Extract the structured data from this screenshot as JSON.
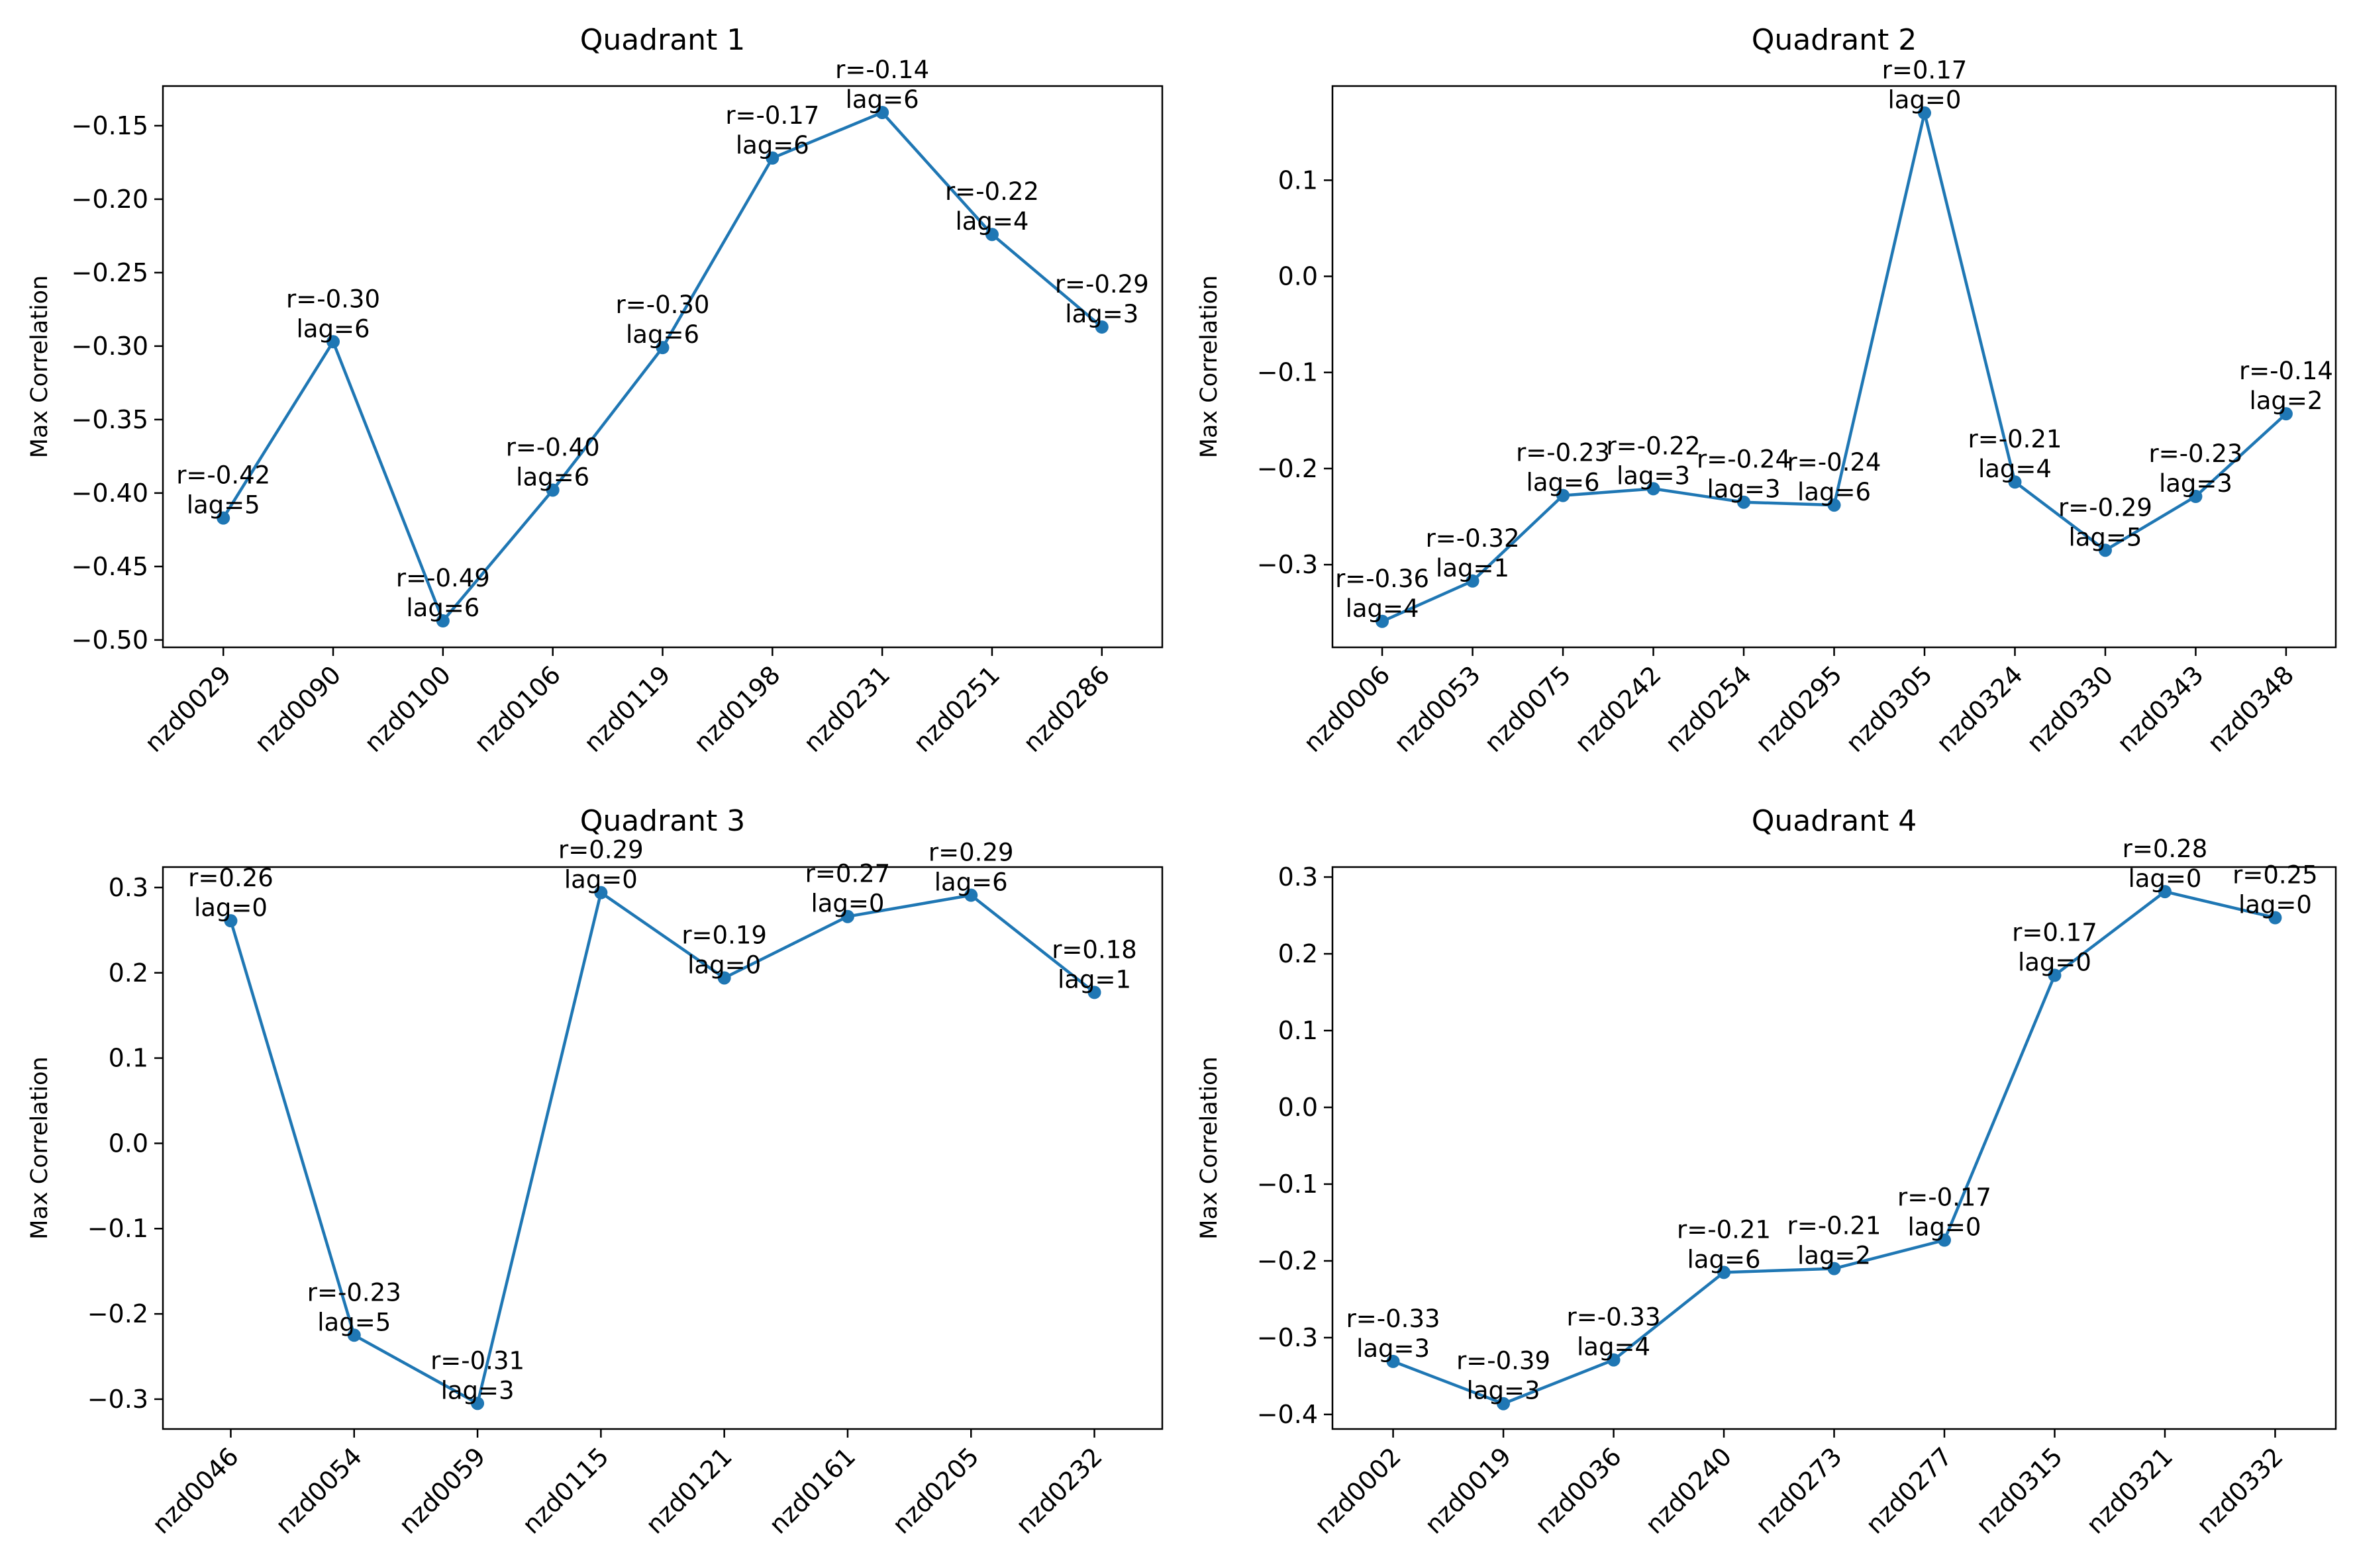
{
  "figure": {
    "background": "#ffffff",
    "line_color": "#1f77b4"
  },
  "chart_data": [
    {
      "type": "line",
      "title": "Quadrant 1",
      "ylabel": "Max Correlation",
      "xlabel": "",
      "categories": [
        "nzd0029",
        "nzd0090",
        "nzd0100",
        "nzd0106",
        "nzd0119",
        "nzd0198",
        "nzd0231",
        "nzd0251",
        "nzd0286"
      ],
      "values": [
        -0.417,
        -0.297,
        -0.487,
        -0.398,
        -0.301,
        -0.172,
        -0.141,
        -0.224,
        -0.287
      ],
      "annotations": [
        "r=-0.42\nlag=5",
        "r=-0.30\nlag=6",
        "r=-0.49\nlag=6",
        "r=-0.40\nlag=6",
        "r=-0.30\nlag=6",
        "r=-0.17\nlag=6",
        "r=-0.14\nlag=6",
        "r=-0.22\nlag=4",
        "r=-0.29\nlag=3"
      ],
      "ylim": [
        -0.505,
        -0.123
      ],
      "yticks": [
        -0.5,
        -0.45,
        -0.4,
        -0.35,
        -0.3,
        -0.25,
        -0.2,
        -0.15
      ],
      "ytick_labels": [
        "−0.50",
        "−0.45",
        "−0.40",
        "−0.35",
        "−0.30",
        "−0.25",
        "−0.20",
        "−0.15"
      ],
      "grid": false,
      "markers": true
    },
    {
      "type": "line",
      "title": "Quadrant 2",
      "ylabel": "Max Correlation",
      "xlabel": "",
      "categories": [
        "nzd0006",
        "nzd0053",
        "nzd0075",
        "nzd0242",
        "nzd0254",
        "nzd0295",
        "nzd0305",
        "nzd0324",
        "nzd0330",
        "nzd0343",
        "nzd0348"
      ],
      "values": [
        -0.359,
        -0.317,
        -0.228,
        -0.221,
        -0.235,
        -0.238,
        0.17,
        -0.214,
        -0.285,
        -0.229,
        -0.143
      ],
      "annotations": [
        "r=-0.36\nlag=4",
        "r=-0.32\nlag=1",
        "r=-0.23\nlag=6",
        "r=-0.22\nlag=3",
        "r=-0.24\nlag=3",
        "r=-0.24\nlag=6",
        "r=0.17\nlag=0",
        "r=-0.21\nlag=4",
        "r=-0.29\nlag=5",
        "r=-0.23\nlag=3",
        "r=-0.14\nlag=2"
      ],
      "ylim": [
        -0.386,
        0.198
      ],
      "yticks": [
        -0.3,
        -0.2,
        -0.1,
        0.0,
        0.1
      ],
      "ytick_labels": [
        "−0.3",
        "−0.2",
        "−0.1",
        "0.0",
        "0.1"
      ],
      "grid": false,
      "markers": true
    },
    {
      "type": "line",
      "title": "Quadrant 3",
      "ylabel": "Max Correlation",
      "xlabel": "",
      "categories": [
        "nzd0046",
        "nzd0054",
        "nzd0059",
        "nzd0115",
        "nzd0121",
        "nzd0161",
        "nzd0205",
        "nzd0232"
      ],
      "values": [
        0.261,
        -0.225,
        -0.305,
        0.294,
        0.194,
        0.266,
        0.291,
        0.177
      ],
      "annotations": [
        "r=0.26\nlag=0",
        "r=-0.23\nlag=5",
        "r=-0.31\nlag=3",
        "r=0.29\nlag=0",
        "r=0.19\nlag=0",
        "r=0.27\nlag=0",
        "r=0.29\nlag=6",
        "r=0.18\nlag=1"
      ],
      "ylim": [
        -0.335,
        0.324
      ],
      "yticks": [
        -0.3,
        -0.2,
        -0.1,
        0.0,
        0.1,
        0.2,
        0.3
      ],
      "ytick_labels": [
        "−0.3",
        "−0.2",
        "−0.1",
        "0.0",
        "0.1",
        "0.2",
        "0.3"
      ],
      "grid": false,
      "markers": true
    },
    {
      "type": "line",
      "title": "Quadrant 4",
      "ylabel": "Max Correlation",
      "xlabel": "",
      "categories": [
        "nzd0002",
        "nzd0019",
        "nzd0036",
        "nzd0240",
        "nzd0273",
        "nzd0277",
        "nzd0315",
        "nzd0321",
        "nzd0332"
      ],
      "values": [
        -0.331,
        -0.386,
        -0.329,
        -0.215,
        -0.21,
        -0.173,
        0.172,
        0.281,
        0.247
      ],
      "annotations": [
        "r=-0.33\nlag=3",
        "r=-0.39\nlag=3",
        "r=-0.33\nlag=4",
        "r=-0.21\nlag=6",
        "r=-0.21\nlag=2",
        "r=-0.17\nlag=0",
        "r=0.17\nlag=0",
        "r=0.28\nlag=0",
        "r=0.25\nlag=0"
      ],
      "ylim": [
        -0.419,
        0.313
      ],
      "yticks": [
        -0.4,
        -0.3,
        -0.2,
        -0.1,
        0.0,
        0.1,
        0.2,
        0.3
      ],
      "ytick_labels": [
        "−0.4",
        "−0.3",
        "−0.2",
        "−0.1",
        "0.0",
        "0.1",
        "0.2",
        "0.3"
      ],
      "grid": false,
      "markers": true
    }
  ]
}
